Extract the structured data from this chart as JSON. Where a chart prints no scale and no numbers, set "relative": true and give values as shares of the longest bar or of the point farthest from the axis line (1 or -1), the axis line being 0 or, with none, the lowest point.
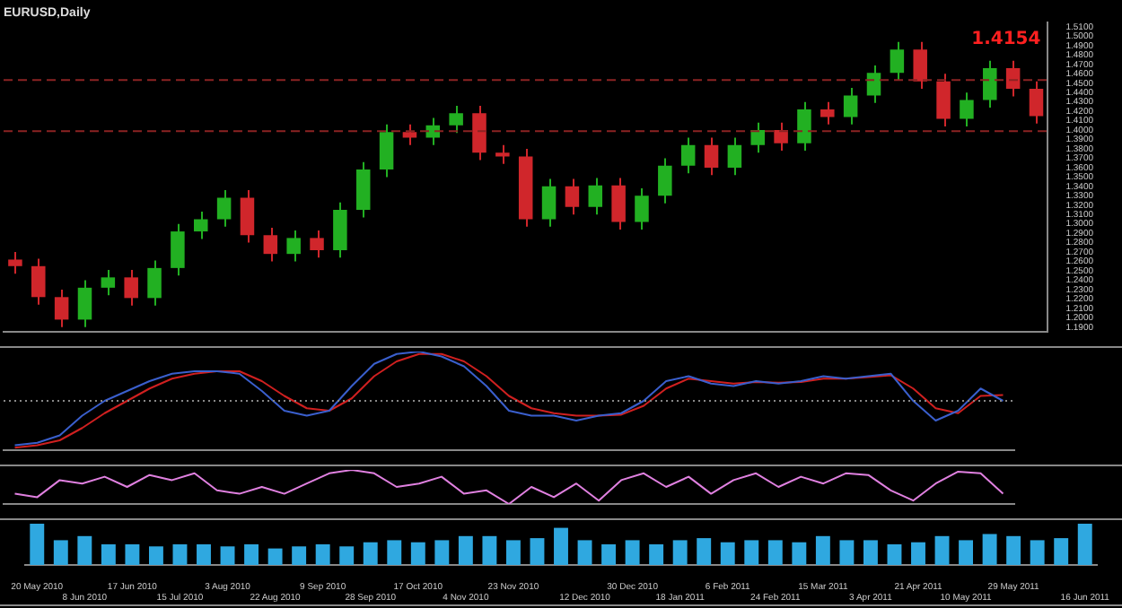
{
  "chart_data": [
    {
      "type": "candlestick",
      "title": "EURUSD,Daily",
      "annotations": [
        "1.4154"
      ],
      "categories": [
        null,
        null,
        null,
        null,
        null,
        null,
        null,
        null,
        null,
        null,
        null,
        null,
        null,
        null,
        null,
        null,
        null,
        null,
        null,
        null,
        null,
        null,
        null,
        null,
        null,
        null,
        null,
        null,
        null,
        null,
        null,
        null,
        null,
        null,
        null,
        null,
        null,
        null,
        null,
        null,
        null,
        null,
        null,
        null,
        null
      ],
      "ohlc": [
        [
          1.262,
          1.27,
          1.247,
          1.255
        ],
        [
          1.255,
          1.263,
          1.214,
          1.222
        ],
        [
          1.222,
          1.23,
          1.19,
          1.198
        ],
        [
          1.198,
          1.24,
          1.19,
          1.232
        ],
        [
          1.232,
          1.251,
          1.224,
          1.243
        ],
        [
          1.243,
          1.251,
          1.213,
          1.221
        ],
        [
          1.221,
          1.261,
          1.213,
          1.253
        ],
        [
          1.253,
          1.3,
          1.245,
          1.292
        ],
        [
          1.292,
          1.313,
          1.284,
          1.305
        ],
        [
          1.305,
          1.336,
          1.297,
          1.328
        ],
        [
          1.328,
          1.336,
          1.28,
          1.288
        ],
        [
          1.288,
          1.296,
          1.26,
          1.268
        ],
        [
          1.268,
          1.293,
          1.26,
          1.285
        ],
        [
          1.285,
          1.293,
          1.264,
          1.272
        ],
        [
          1.272,
          1.323,
          1.264,
          1.315
        ],
        [
          1.315,
          1.366,
          1.307,
          1.358
        ],
        [
          1.358,
          1.406,
          1.35,
          1.398
        ],
        [
          1.398,
          1.406,
          1.384,
          1.392
        ],
        [
          1.392,
          1.413,
          1.384,
          1.405
        ],
        [
          1.405,
          1.426,
          1.397,
          1.418
        ],
        [
          1.418,
          1.426,
          1.368,
          1.376
        ],
        [
          1.376,
          1.384,
          1.364,
          1.372
        ],
        [
          1.372,
          1.38,
          1.297,
          1.305
        ],
        [
          1.305,
          1.348,
          1.297,
          1.34
        ],
        [
          1.34,
          1.348,
          1.31,
          1.318
        ],
        [
          1.318,
          1.349,
          1.31,
          1.341
        ],
        [
          1.341,
          1.349,
          1.294,
          1.302
        ],
        [
          1.302,
          1.338,
          1.294,
          1.33
        ],
        [
          1.33,
          1.37,
          1.322,
          1.362
        ],
        [
          1.362,
          1.392,
          1.354,
          1.384
        ],
        [
          1.384,
          1.392,
          1.352,
          1.36
        ],
        [
          1.36,
          1.392,
          1.352,
          1.384
        ],
        [
          1.384,
          1.408,
          1.376,
          1.4
        ],
        [
          1.4,
          1.408,
          1.378,
          1.386
        ],
        [
          1.386,
          1.43,
          1.378,
          1.422
        ],
        [
          1.422,
          1.43,
          1.406,
          1.414
        ],
        [
          1.414,
          1.445,
          1.406,
          1.437
        ],
        [
          1.437,
          1.469,
          1.429,
          1.461
        ],
        [
          1.461,
          1.494,
          1.453,
          1.486
        ],
        [
          1.486,
          1.494,
          1.444,
          1.452
        ],
        [
          1.452,
          1.46,
          1.404,
          1.412
        ],
        [
          1.412,
          1.44,
          1.404,
          1.432
        ],
        [
          1.432,
          1.474,
          1.424,
          1.466
        ],
        [
          1.466,
          1.474,
          1.436,
          1.444
        ],
        [
          1.444,
          1.452,
          1.407,
          1.415
        ]
      ],
      "ylim": [
        1.185,
        1.515
      ],
      "yticks": [
        {
          "value": 1.19,
          "label": "1.1900"
        },
        {
          "value": 1.2,
          "label": "1.2000"
        },
        {
          "value": 1.21,
          "label": "1.2100"
        },
        {
          "value": 1.22,
          "label": "1.2200"
        },
        {
          "value": 1.23,
          "label": "1.2300"
        },
        {
          "value": 1.24,
          "label": "1.2400"
        },
        {
          "value": 1.25,
          "label": "1.2500"
        },
        {
          "value": 1.26,
          "label": "1.2600"
        },
        {
          "value": 1.27,
          "label": "1.2700"
        },
        {
          "value": 1.28,
          "label": "1.2800"
        },
        {
          "value": 1.29,
          "label": "1.2900"
        },
        {
          "value": 1.3,
          "label": "1.3000"
        },
        {
          "value": 1.31,
          "label": "1.3100"
        },
        {
          "value": 1.32,
          "label": "1.3200"
        },
        {
          "value": 1.33,
          "label": "1.3300"
        },
        {
          "value": 1.34,
          "label": "1.3400"
        },
        {
          "value": 1.35,
          "label": "1.3500"
        },
        {
          "value": 1.36,
          "label": "1.3600"
        },
        {
          "value": 1.37,
          "label": "1.3700"
        },
        {
          "value": 1.38,
          "label": "1.3800"
        },
        {
          "value": 1.39,
          "label": "1.3900"
        },
        {
          "value": 1.4,
          "label": "1.4000"
        },
        {
          "value": 1.41,
          "label": "1.4100"
        },
        {
          "value": 1.42,
          "label": "1.4200"
        },
        {
          "value": 1.43,
          "label": "1.4300"
        },
        {
          "value": 1.44,
          "label": "1.4400"
        },
        {
          "value": 1.45,
          "label": "1.4500"
        },
        {
          "value": 1.46,
          "label": "1.4600"
        },
        {
          "value": 1.47,
          "label": "1.4700"
        },
        {
          "value": 1.48,
          "label": "1.4800"
        },
        {
          "value": 1.49,
          "label": "1.4900"
        },
        {
          "value": 1.5,
          "label": "1.5000"
        },
        {
          "value": 1.51,
          "label": "1.5100"
        }
      ],
      "ref_lines": [
        {
          "axis": "y",
          "value": 1.4535,
          "color": "#8b2323",
          "line_style": "dashed"
        },
        {
          "axis": "y",
          "value": 1.399,
          "color": "#8b2323",
          "line_style": "dashed"
        }
      ],
      "tick_labels": "y"
    },
    {
      "type": "line",
      "relative": true,
      "tick_labels": false,
      "categories": [
        null,
        null,
        null,
        null,
        null,
        null,
        null,
        null,
        null,
        null,
        null,
        null,
        null,
        null,
        null,
        null,
        null,
        null,
        null,
        null,
        null,
        null,
        null,
        null,
        null,
        null,
        null,
        null,
        null,
        null,
        null,
        null,
        null,
        null,
        null,
        null,
        null,
        null,
        null,
        null,
        null,
        null,
        null,
        null,
        null
      ],
      "series": [
        {
          "color": "#3a5fcd",
          "values": [
            -0.9,
            -0.85,
            -0.7,
            -0.3,
            0.0,
            0.2,
            0.4,
            0.55,
            0.6,
            0.6,
            0.55,
            0.2,
            -0.2,
            -0.3,
            -0.2,
            0.3,
            0.75,
            0.95,
            1.0,
            0.9,
            0.7,
            0.3,
            -0.2,
            -0.3,
            -0.3,
            -0.4,
            -0.3,
            -0.25,
            0.0,
            0.4,
            0.5,
            0.35,
            0.3,
            0.4,
            0.35,
            0.4,
            0.5,
            0.45,
            0.5,
            0.55,
            0.0,
            -0.4,
            -0.2,
            0.25,
            0.0
          ]
        },
        {
          "color": "#d02020",
          "values": [
            -0.95,
            -0.9,
            -0.8,
            -0.55,
            -0.25,
            0.0,
            0.25,
            0.45,
            0.55,
            0.6,
            0.6,
            0.4,
            0.1,
            -0.15,
            -0.2,
            0.05,
            0.5,
            0.8,
            0.95,
            0.95,
            0.8,
            0.5,
            0.1,
            -0.15,
            -0.25,
            -0.3,
            -0.3,
            -0.28,
            -0.1,
            0.25,
            0.45,
            0.4,
            0.35,
            0.38,
            0.37,
            0.38,
            0.45,
            0.45,
            0.48,
            0.52,
            0.25,
            -0.15,
            -0.25,
            0.1,
            0.12
          ]
        }
      ],
      "ref_lines": [
        {
          "axis": "y",
          "value": 0,
          "color": "#888888",
          "line_style": "dotted"
        }
      ],
      "marker": "none"
    },
    {
      "type": "line",
      "relative": true,
      "tick_labels": false,
      "categories": [
        null,
        null,
        null,
        null,
        null,
        null,
        null,
        null,
        null,
        null,
        null,
        null,
        null,
        null,
        null,
        null,
        null,
        null,
        null,
        null,
        null,
        null,
        null,
        null,
        null,
        null,
        null,
        null,
        null,
        null,
        null,
        null,
        null,
        null,
        null,
        null,
        null,
        null,
        null,
        null,
        null,
        null,
        null,
        null,
        null
      ],
      "series": [
        {
          "color": "#e080e0",
          "values": [
            0.3,
            0.2,
            0.7,
            0.6,
            0.8,
            0.5,
            0.85,
            0.7,
            0.9,
            0.4,
            0.3,
            0.5,
            0.3,
            0.6,
            0.9,
            1.0,
            0.9,
            0.5,
            0.6,
            0.8,
            0.3,
            0.4,
            0.0,
            0.5,
            0.2,
            0.6,
            0.1,
            0.7,
            0.9,
            0.5,
            0.8,
            0.3,
            0.7,
            0.9,
            0.5,
            0.8,
            0.6,
            0.9,
            0.85,
            0.4,
            0.1,
            0.6,
            0.95,
            0.9,
            0.3
          ]
        }
      ],
      "marker": "none"
    },
    {
      "type": "bar",
      "relative": true,
      "tick_labels": "x",
      "categories": [
        "20 May 2010",
        null,
        "8 Jun 2010",
        null,
        "17 Jun 2010",
        null,
        "15 Jul 2010",
        null,
        "3 Aug 2010",
        null,
        "22 Aug 2010",
        null,
        "9 Sep 2010",
        null,
        "28 Sep 2010",
        null,
        "17 Oct 2010",
        null,
        "4 Nov 2010",
        null,
        "23 Nov 2010",
        null,
        null,
        "12 Dec 2010",
        null,
        "30 Dec 2010",
        null,
        "18 Jan 2011",
        null,
        "6 Feb 2011",
        null,
        "24 Feb 2011",
        null,
        "15 Mar 2011",
        null,
        "3 Apr 2011",
        null,
        "21 Apr 2011",
        null,
        "10 May 2011",
        null,
        "29 May 2011",
        null,
        null,
        "16 Jun 2011"
      ],
      "color": "#2fa8e0",
      "values": [
        1,
        0.6,
        0.7,
        0.5,
        0.5,
        0.45,
        0.5,
        0.5,
        0.45,
        0.5,
        0.4,
        0.45,
        0.5,
        0.45,
        0.55,
        0.6,
        0.55,
        0.6,
        0.7,
        0.7,
        0.6,
        0.65,
        0.9,
        0.6,
        0.5,
        0.6,
        0.5,
        0.6,
        0.65,
        0.55,
        0.6,
        0.6,
        0.55,
        0.7,
        0.6,
        0.6,
        0.5,
        0.55,
        0.7,
        0.6,
        0.75,
        0.7,
        0.6,
        0.65,
        1
      ]
    }
  ]
}
